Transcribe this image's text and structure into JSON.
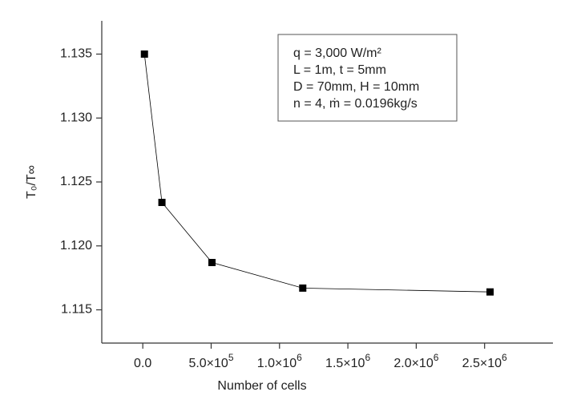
{
  "chart_data": {
    "type": "line",
    "x_label": "Number of cells",
    "y_label": "T₀/T∞",
    "annotation": [
      "q = 3,000 W/m²",
      "L = 1m, t = 5mm",
      "D = 70mm, H = 10mm",
      "n = 4, ṁ = 0.0196kg/s"
    ],
    "x": [
      12000,
      140000,
      506000,
      1170000,
      2540000
    ],
    "series": [
      {
        "name": "T₀/T∞",
        "color": "#000000",
        "values": [
          1.135,
          1.1234,
          1.1187,
          1.1167,
          1.1164
        ]
      }
    ],
    "xlim": [
      -300000,
      3000000
    ],
    "ylim": [
      1.1124,
      1.1376
    ],
    "xticks": [
      {
        "value": 0,
        "label": "0.0"
      },
      {
        "value": 500000,
        "label": "5.0×10",
        "exponent": "5"
      },
      {
        "value": 1000000,
        "label": "1.0×10",
        "exponent": "6"
      },
      {
        "value": 1500000,
        "label": "1.5×10",
        "exponent": "6"
      },
      {
        "value": 2000000,
        "label": "2.0×10",
        "exponent": "6"
      },
      {
        "value": 2500000,
        "label": "2.5×10",
        "exponent": "6"
      }
    ],
    "yticks": [
      {
        "value": 1.115,
        "label": "1.115"
      },
      {
        "value": 1.12,
        "label": "1.120"
      },
      {
        "value": 1.125,
        "label": "1.125"
      },
      {
        "value": 1.13,
        "label": "1.130"
      },
      {
        "value": 1.135,
        "label": "1.135"
      }
    ],
    "grid": false
  }
}
